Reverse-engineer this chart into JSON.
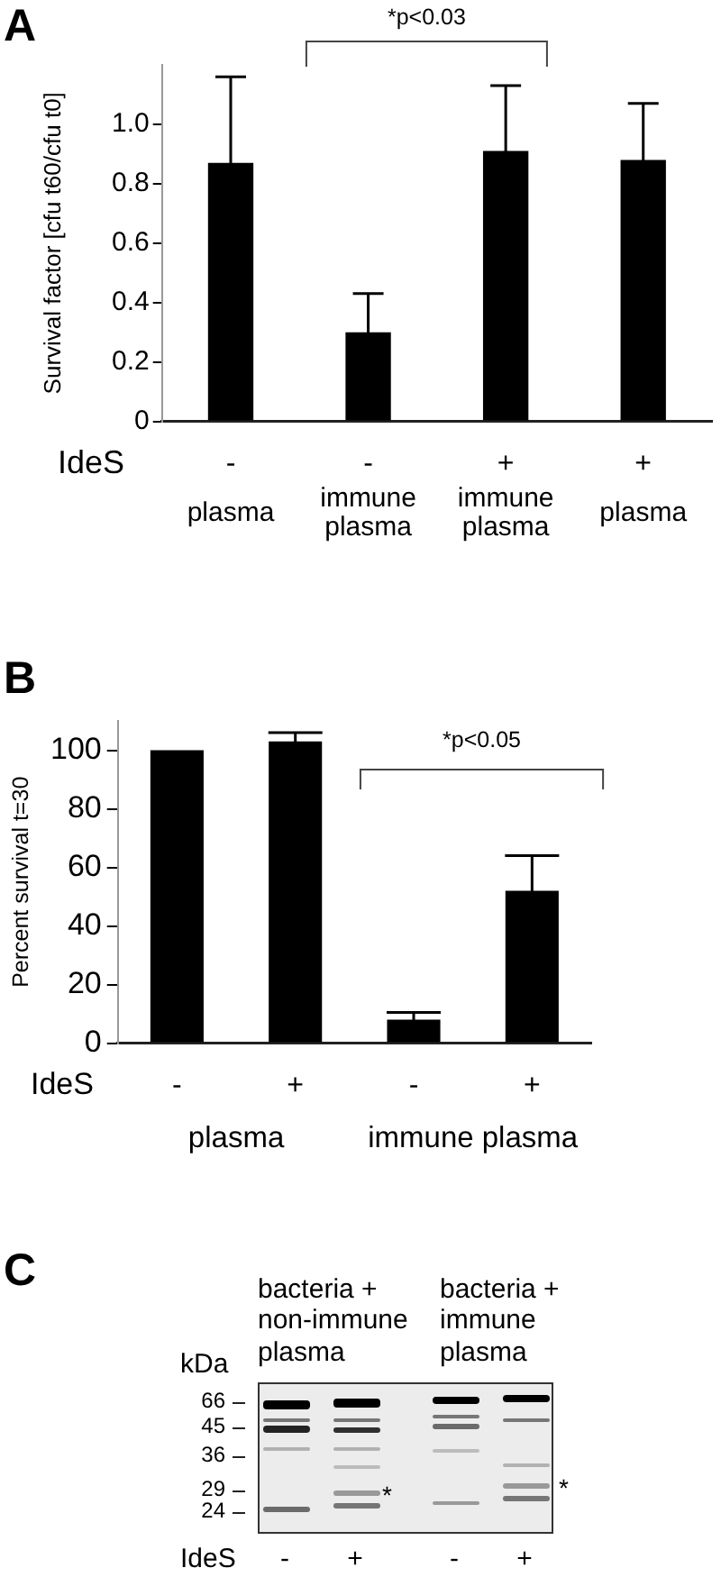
{
  "chart_data": [
    {
      "type": "bar",
      "title": "A",
      "ylabel": "Survival factor [cfu t60/cfu t0]",
      "xlabel": "IdeS",
      "categories": [
        "-",
        "-",
        "+",
        "+"
      ],
      "values": [
        0.87,
        0.3,
        0.91,
        0.88
      ],
      "errors": [
        0.29,
        0.13,
        0.22,
        0.19
      ],
      "color": "#000000",
      "ylim": [
        0,
        1.2
      ],
      "yticks": [
        0,
        0.2,
        0.4,
        0.6,
        0.8,
        {
          "value": 1,
          "label": "1.0"
        }
      ],
      "annotations": [
        "*p<0.03",
        "plasma",
        "immune plasma",
        "immune plasma",
        "plasma"
      ]
    },
    {
      "type": "bar",
      "title": "B",
      "ylabel": "Percent survival t=30",
      "xlabel": "IdeS",
      "categories": [
        "-",
        "+",
        "-",
        "+"
      ],
      "values": [
        100,
        103,
        8,
        52
      ],
      "errors": [
        null,
        3,
        2.5,
        12
      ],
      "color": "#000000",
      "ylim": [
        0,
        110
      ],
      "yticks": [
        0,
        20,
        40,
        60,
        80,
        100
      ],
      "annotations": [
        "*p<0.05",
        "plasma",
        "immune plasma"
      ]
    },
    {
      "type": "other",
      "title": "C",
      "xlabel": "IdeS",
      "ylabel": "kDa",
      "categories": [
        "-",
        "+",
        "-",
        "+"
      ],
      "annotations": [
        "bacteria + non-immune plasma",
        "bacteria + immune plasma",
        "66",
        "45",
        "36",
        "29",
        "24",
        "*",
        "*"
      ]
    }
  ]
}
